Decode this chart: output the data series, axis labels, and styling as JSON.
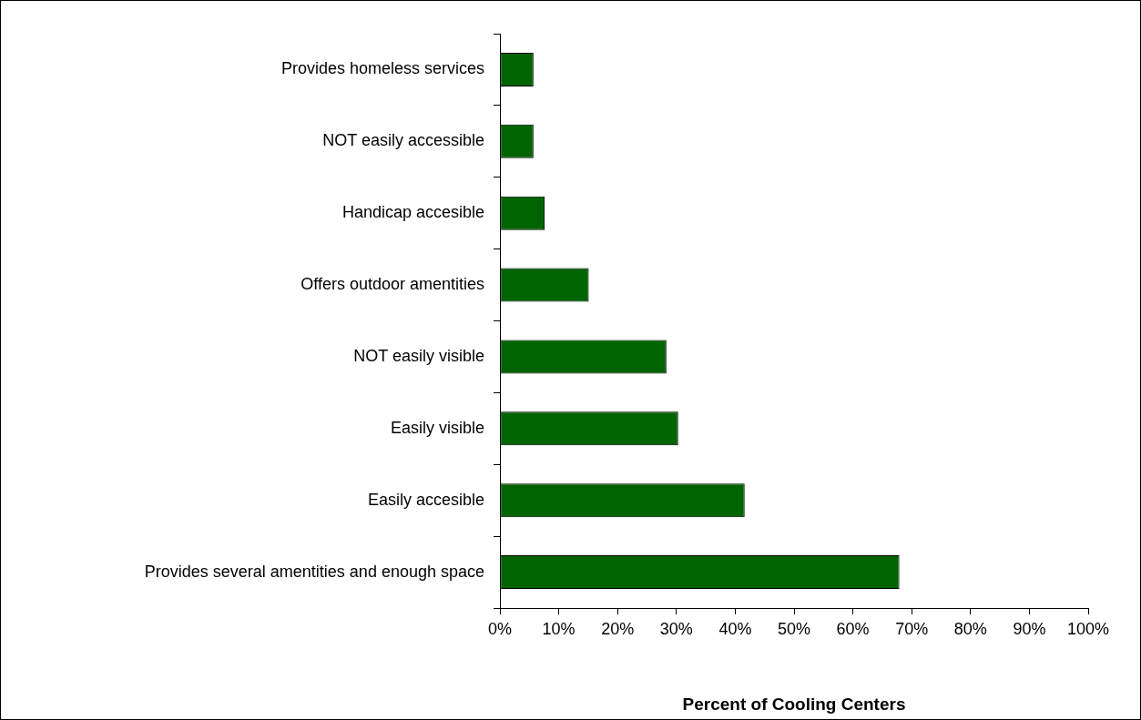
{
  "chart_data": {
    "type": "bar",
    "orientation": "horizontal",
    "categories": [
      "Provides homeless services",
      "NOT easily accessible",
      "Handicap accesible",
      "Offers outdoor amentities",
      "NOT easily visible",
      "Easily visible",
      "Easily accesible",
      "Provides several amentities and enough space"
    ],
    "values": [
      5.7,
      5.7,
      7.6,
      15.1,
      28.3,
      30.3,
      41.6,
      67.9
    ],
    "color": "#006400",
    "xlabel": "Percent of Cooling Centers",
    "xlim": [
      0,
      100
    ],
    "xticks": [
      {
        "value": 0,
        "label": "0%"
      },
      {
        "value": 10,
        "label": "10%"
      },
      {
        "value": 20,
        "label": "20%"
      },
      {
        "value": 30,
        "label": "30%"
      },
      {
        "value": 40,
        "label": "40%"
      },
      {
        "value": 50,
        "label": "50%"
      },
      {
        "value": 60,
        "label": "60%"
      },
      {
        "value": 70,
        "label": "70%"
      },
      {
        "value": 80,
        "label": "80%"
      },
      {
        "value": 90,
        "label": "90%"
      },
      {
        "value": 100,
        "label": "100%"
      }
    ],
    "grid": false,
    "legend": false
  }
}
